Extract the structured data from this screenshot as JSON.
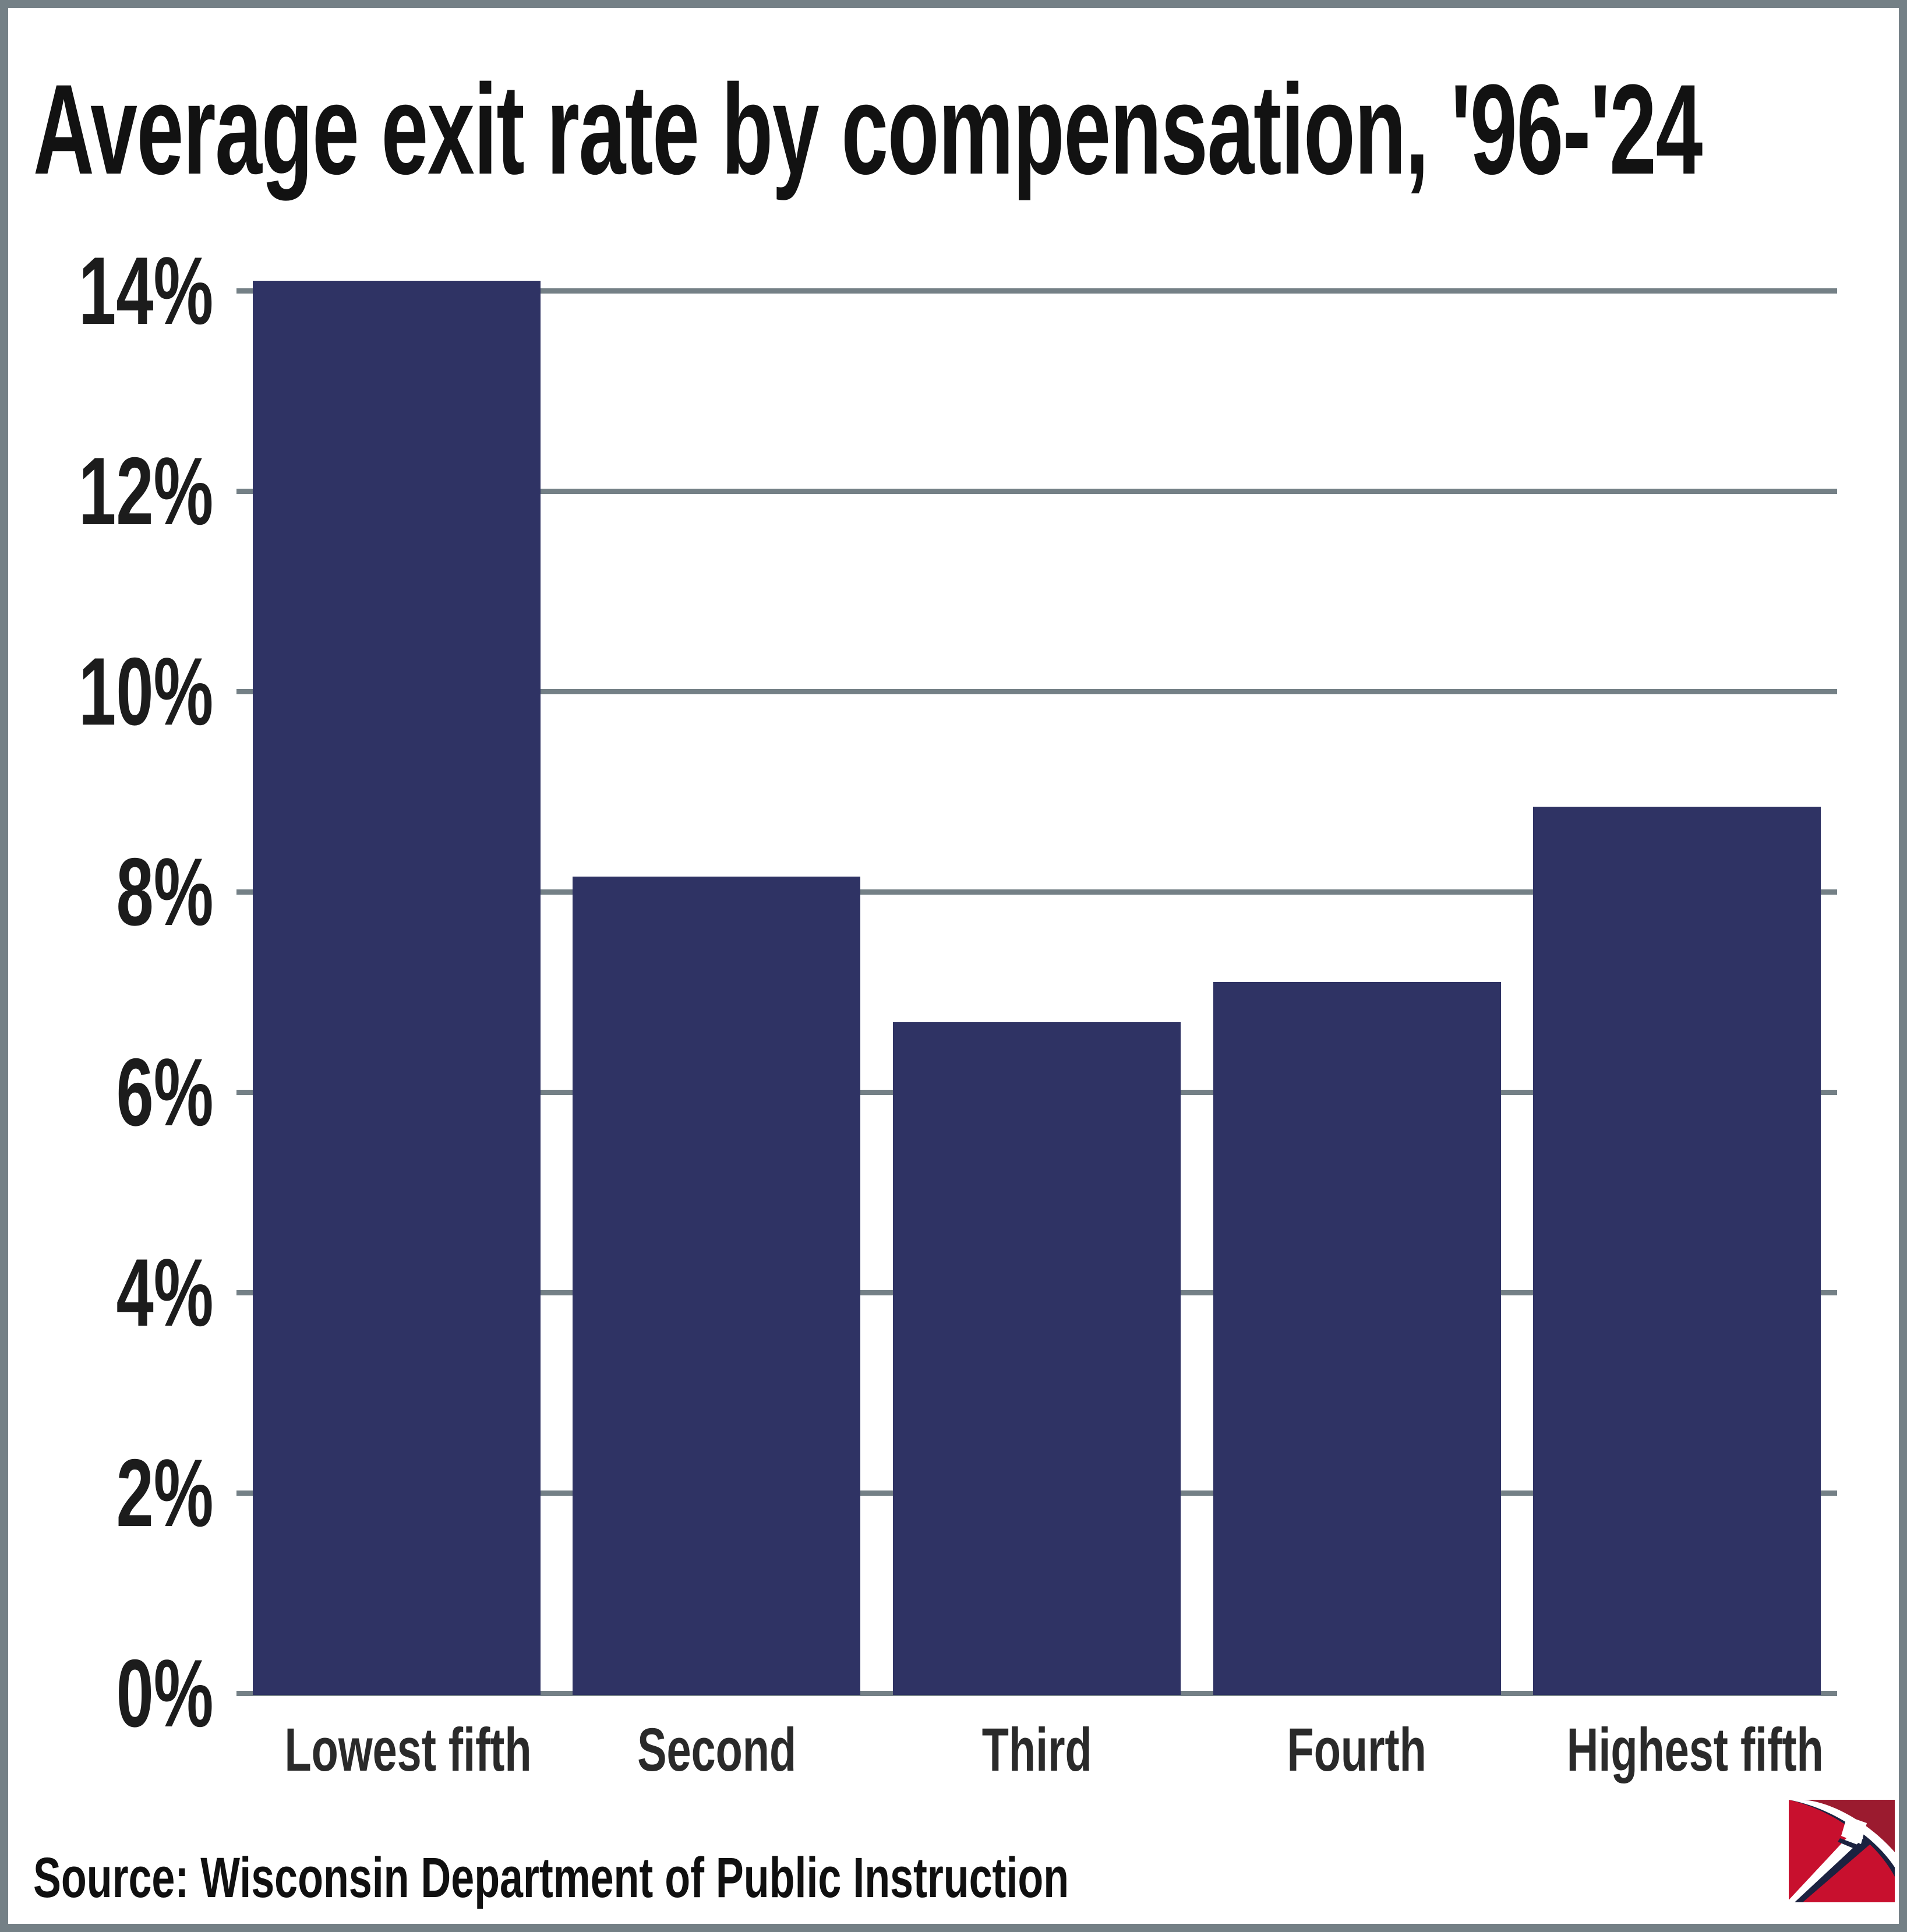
{
  "title": "Average exit rate by compensation, '96-'24",
  "source": "Source: Wisconsin Department of Public Instruction",
  "colors": {
    "bar": "#2f3364",
    "grid": "#748086",
    "frame": "#748086",
    "title_text": "#121212",
    "axis_text": "#1c1c1c",
    "logo_bright_red": "#c8102e",
    "logo_dark_red": "#9b1b2f",
    "logo_navy": "#1b2240",
    "logo_white": "#ffffff"
  },
  "logo_name": "pickaxe-logo",
  "chart_data": {
    "type": "bar",
    "title": "Average exit rate by compensation, '96-'24",
    "categories": [
      "Lowest fifth",
      "Second",
      "Third",
      "Fourth",
      "Highest fifth"
    ],
    "values": [
      14.1,
      8.15,
      6.7,
      7.1,
      8.85
    ],
    "xlabel": "",
    "ylabel": "",
    "ylim": [
      0,
      14
    ],
    "ytick_interval": 2,
    "ytick_labels": [
      "0%",
      "2%",
      "4%",
      "6%",
      "8%",
      "10%",
      "12%",
      "14%"
    ],
    "grid": true,
    "legend": false,
    "bar_color": "#2f3364",
    "source": "Source: Wisconsin Department of Public Instruction"
  }
}
